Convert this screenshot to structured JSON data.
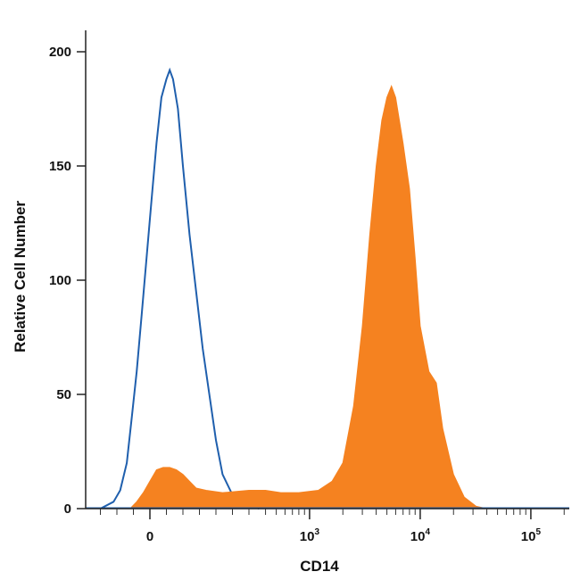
{
  "chart_data": {
    "type": "area",
    "title": "",
    "xlabel": "CD14",
    "ylabel": "Relative Cell Number",
    "x_scale": "biexponential (linear near 0, log above ~10^2.5)",
    "ylim": [
      0,
      210
    ],
    "y_ticks": [
      0,
      50,
      100,
      150,
      200
    ],
    "x_ticks": [
      {
        "value": 0,
        "label": "0"
      },
      {
        "value": 1000,
        "label": "10",
        "exp": "3"
      },
      {
        "value": 10000,
        "label": "10",
        "exp": "4"
      },
      {
        "value": 100000,
        "label": "10",
        "exp": "5"
      }
    ],
    "grid": false,
    "legend": "none",
    "series": [
      {
        "kind": "outline",
        "color": "#1f5fad",
        "points": [
          [
            -150,
            0
          ],
          [
            -110,
            3
          ],
          [
            -90,
            8
          ],
          [
            -70,
            20
          ],
          [
            -55,
            40
          ],
          [
            -40,
            60
          ],
          [
            -25,
            85
          ],
          [
            -10,
            110
          ],
          [
            5,
            135
          ],
          [
            20,
            160
          ],
          [
            35,
            180
          ],
          [
            50,
            188
          ],
          [
            60,
            192
          ],
          [
            70,
            188
          ],
          [
            85,
            175
          ],
          [
            100,
            150
          ],
          [
            120,
            120
          ],
          [
            140,
            95
          ],
          [
            160,
            70
          ],
          [
            180,
            50
          ],
          [
            200,
            30
          ],
          [
            220,
            15
          ],
          [
            250,
            6
          ],
          [
            290,
            2
          ],
          [
            350,
            0
          ]
        ]
      },
      {
        "kind": "filled",
        "color": "#f58220",
        "points": [
          [
            -60,
            0
          ],
          [
            -40,
            3
          ],
          [
            -20,
            7
          ],
          [
            0,
            12
          ],
          [
            20,
            17
          ],
          [
            40,
            18
          ],
          [
            60,
            18
          ],
          [
            80,
            17
          ],
          [
            100,
            15
          ],
          [
            120,
            12
          ],
          [
            140,
            9
          ],
          [
            170,
            8
          ],
          [
            220,
            7
          ],
          [
            300,
            8
          ],
          [
            400,
            8
          ],
          [
            550,
            7
          ],
          [
            800,
            7
          ],
          [
            1200,
            8
          ],
          [
            1600,
            12
          ],
          [
            2000,
            20
          ],
          [
            2500,
            45
          ],
          [
            3000,
            80
          ],
          [
            3500,
            120
          ],
          [
            4000,
            150
          ],
          [
            4500,
            170
          ],
          [
            5000,
            180
          ],
          [
            5500,
            185
          ],
          [
            6000,
            180
          ],
          [
            7000,
            160
          ],
          [
            8000,
            140
          ],
          [
            9000,
            110
          ],
          [
            10000,
            80
          ],
          [
            12000,
            60
          ],
          [
            14000,
            55
          ],
          [
            16000,
            35
          ],
          [
            20000,
            15
          ],
          [
            25000,
            5
          ],
          [
            32000,
            1
          ],
          [
            40000,
            0
          ]
        ]
      }
    ]
  }
}
